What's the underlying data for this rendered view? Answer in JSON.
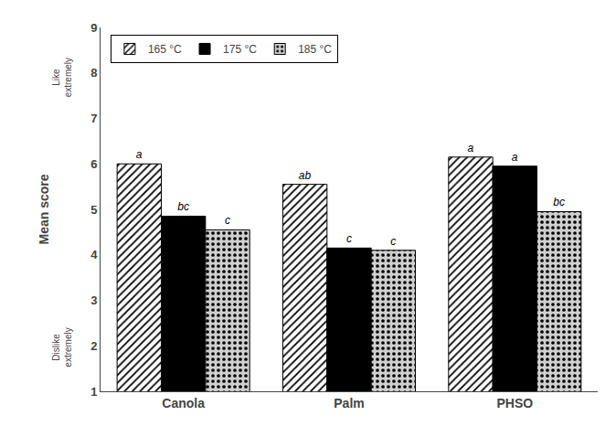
{
  "chart_data": {
    "type": "bar",
    "categories": [
      "Canola",
      "Palm",
      "PHSO"
    ],
    "series": [
      {
        "name": "165 °C",
        "color": "#ffffff",
        "marker": "////",
        "values": [
          6.0,
          5.55,
          6.15
        ],
        "annotations": [
          "a",
          "ab",
          "a"
        ]
      },
      {
        "name": "175 °C",
        "color": "#000000",
        "marker": "none",
        "values": [
          4.85,
          4.15,
          5.95
        ],
        "annotations": [
          "bc",
          "c",
          "a"
        ]
      },
      {
        "name": "185 °C",
        "color": "#d0d0d0",
        "marker": "....",
        "values": [
          4.55,
          4.1,
          4.95
        ],
        "annotations": [
          "c",
          "c",
          "bc"
        ]
      }
    ],
    "ylabel": "Mean score",
    "ylabel_top": "Like\nextremely",
    "ylabel_bottom": "Dislike\nextremely",
    "ylim": [
      1,
      9
    ],
    "yticks": [
      1,
      2,
      3,
      4,
      5,
      6,
      7,
      8,
      9
    ],
    "grid": false,
    "legend": "upper left"
  }
}
